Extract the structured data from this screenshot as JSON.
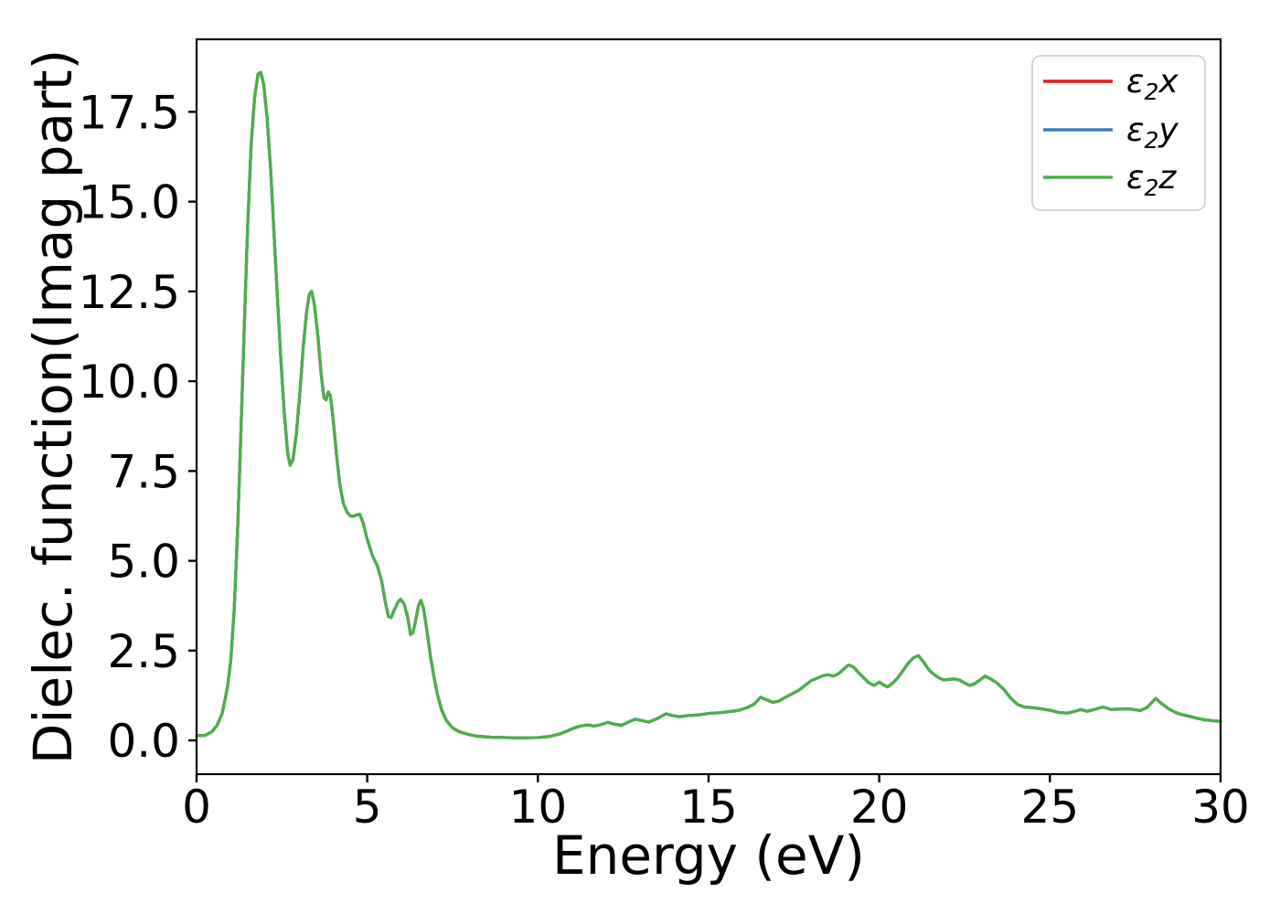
{
  "figure": {
    "background": "#ffffff",
    "axis_color": "#000000",
    "legend_border_color": "#cccccc",
    "legend_background": "#ffffff"
  },
  "chart_data": {
    "type": "line",
    "title": "",
    "xlabel": "Energy (eV)",
    "ylabel": "Dielec. function(Imag part)",
    "xlim": [
      0,
      30
    ],
    "ylim": [
      -0.94,
      19.52
    ],
    "xticks": [
      0,
      5,
      10,
      15,
      20,
      25,
      30
    ],
    "xtick_labels": [
      "0",
      "5",
      "10",
      "15",
      "20",
      "25",
      "30"
    ],
    "yticks": [
      0.0,
      2.5,
      5.0,
      7.5,
      10.0,
      12.5,
      15.0,
      17.5
    ],
    "ytick_labels": [
      "0.0",
      "2.5",
      "5.0",
      "7.5",
      "10.0",
      "12.5",
      "15.0",
      "17.5"
    ],
    "grid": false,
    "legend": {
      "position": "upper right",
      "entries": [
        {
          "symbol": "ε",
          "sub": "2",
          "var": "x",
          "label": "ε2x",
          "color": "#e41a1c"
        },
        {
          "symbol": "ε",
          "sub": "2",
          "var": "y",
          "label": "ε2y",
          "color": "#377eb8"
        },
        {
          "symbol": "ε",
          "sub": "2",
          "var": "z",
          "label": "ε2z",
          "color": "#4daf4a"
        }
      ]
    },
    "series_overlap_identically": true,
    "series": [
      {
        "name": "eps2x",
        "color": "#e41a1c",
        "points_ref": "shared_points"
      },
      {
        "name": "eps2y",
        "color": "#377eb8",
        "points_ref": "shared_points"
      },
      {
        "name": "eps2z",
        "color": "#4daf4a",
        "points_ref": "shared_points"
      }
    ],
    "shared_points": [
      [
        0.0,
        0.13
      ],
      [
        0.25,
        0.14
      ],
      [
        0.45,
        0.24
      ],
      [
        0.6,
        0.42
      ],
      [
        0.75,
        0.75
      ],
      [
        0.9,
        1.45
      ],
      [
        1.0,
        2.2
      ],
      [
        1.1,
        3.6
      ],
      [
        1.2,
        5.8
      ],
      [
        1.3,
        8.6
      ],
      [
        1.4,
        11.6
      ],
      [
        1.5,
        14.4
      ],
      [
        1.6,
        16.6
      ],
      [
        1.7,
        17.9
      ],
      [
        1.8,
        18.55
      ],
      [
        1.88,
        18.6
      ],
      [
        1.97,
        18.25
      ],
      [
        2.07,
        17.3
      ],
      [
        2.17,
        15.9
      ],
      [
        2.27,
        14.1
      ],
      [
        2.37,
        12.3
      ],
      [
        2.47,
        10.6
      ],
      [
        2.57,
        9.1
      ],
      [
        2.67,
        8.0
      ],
      [
        2.74,
        7.66
      ],
      [
        2.82,
        7.8
      ],
      [
        2.92,
        8.5
      ],
      [
        3.02,
        9.6
      ],
      [
        3.12,
        10.9
      ],
      [
        3.22,
        11.9
      ],
      [
        3.3,
        12.42
      ],
      [
        3.37,
        12.5
      ],
      [
        3.45,
        12.15
      ],
      [
        3.55,
        11.3
      ],
      [
        3.65,
        10.2
      ],
      [
        3.73,
        9.55
      ],
      [
        3.79,
        9.48
      ],
      [
        3.86,
        9.7
      ],
      [
        3.92,
        9.6
      ],
      [
        4.0,
        8.95
      ],
      [
        4.1,
        7.95
      ],
      [
        4.2,
        7.1
      ],
      [
        4.3,
        6.6
      ],
      [
        4.4,
        6.37
      ],
      [
        4.5,
        6.25
      ],
      [
        4.6,
        6.24
      ],
      [
        4.7,
        6.28
      ],
      [
        4.78,
        6.3
      ],
      [
        4.88,
        6.05
      ],
      [
        5.0,
        5.6
      ],
      [
        5.15,
        5.15
      ],
      [
        5.3,
        4.85
      ],
      [
        5.42,
        4.45
      ],
      [
        5.52,
        3.9
      ],
      [
        5.62,
        3.45
      ],
      [
        5.7,
        3.42
      ],
      [
        5.8,
        3.65
      ],
      [
        5.9,
        3.85
      ],
      [
        5.98,
        3.93
      ],
      [
        6.08,
        3.8
      ],
      [
        6.18,
        3.45
      ],
      [
        6.27,
        2.95
      ],
      [
        6.34,
        3.0
      ],
      [
        6.42,
        3.35
      ],
      [
        6.5,
        3.75
      ],
      [
        6.57,
        3.9
      ],
      [
        6.65,
        3.68
      ],
      [
        6.75,
        3.05
      ],
      [
        6.85,
        2.35
      ],
      [
        6.95,
        1.8
      ],
      [
        7.05,
        1.3
      ],
      [
        7.18,
        0.85
      ],
      [
        7.32,
        0.55
      ],
      [
        7.5,
        0.35
      ],
      [
        7.7,
        0.24
      ],
      [
        7.95,
        0.17
      ],
      [
        8.2,
        0.12
      ],
      [
        8.6,
        0.09
      ],
      [
        9.0,
        0.08
      ],
      [
        9.5,
        0.07
      ],
      [
        10.0,
        0.08
      ],
      [
        10.35,
        0.11
      ],
      [
        10.65,
        0.18
      ],
      [
        10.85,
        0.26
      ],
      [
        11.05,
        0.34
      ],
      [
        11.25,
        0.4
      ],
      [
        11.45,
        0.43
      ],
      [
        11.65,
        0.4
      ],
      [
        11.85,
        0.44
      ],
      [
        12.05,
        0.5
      ],
      [
        12.25,
        0.45
      ],
      [
        12.45,
        0.42
      ],
      [
        12.65,
        0.51
      ],
      [
        12.85,
        0.59
      ],
      [
        13.05,
        0.55
      ],
      [
        13.25,
        0.51
      ],
      [
        13.5,
        0.61
      ],
      [
        13.75,
        0.74
      ],
      [
        13.95,
        0.69
      ],
      [
        14.15,
        0.66
      ],
      [
        14.4,
        0.69
      ],
      [
        14.7,
        0.71
      ],
      [
        15.0,
        0.75
      ],
      [
        15.3,
        0.77
      ],
      [
        15.6,
        0.8
      ],
      [
        15.9,
        0.84
      ],
      [
        16.15,
        0.92
      ],
      [
        16.35,
        1.02
      ],
      [
        16.52,
        1.2
      ],
      [
        16.7,
        1.13
      ],
      [
        16.88,
        1.06
      ],
      [
        17.05,
        1.09
      ],
      [
        17.25,
        1.2
      ],
      [
        17.45,
        1.3
      ],
      [
        17.65,
        1.4
      ],
      [
        17.85,
        1.55
      ],
      [
        18.0,
        1.66
      ],
      [
        18.2,
        1.74
      ],
      [
        18.35,
        1.8
      ],
      [
        18.5,
        1.83
      ],
      [
        18.65,
        1.79
      ],
      [
        18.8,
        1.85
      ],
      [
        18.95,
        1.98
      ],
      [
        19.1,
        2.1
      ],
      [
        19.25,
        2.04
      ],
      [
        19.4,
        1.88
      ],
      [
        19.55,
        1.74
      ],
      [
        19.7,
        1.6
      ],
      [
        19.85,
        1.53
      ],
      [
        20.0,
        1.62
      ],
      [
        20.12,
        1.55
      ],
      [
        20.25,
        1.49
      ],
      [
        20.4,
        1.6
      ],
      [
        20.55,
        1.75
      ],
      [
        20.7,
        1.95
      ],
      [
        20.85,
        2.15
      ],
      [
        21.0,
        2.3
      ],
      [
        21.15,
        2.36
      ],
      [
        21.3,
        2.18
      ],
      [
        21.45,
        1.97
      ],
      [
        21.6,
        1.84
      ],
      [
        21.75,
        1.74
      ],
      [
        21.9,
        1.68
      ],
      [
        22.05,
        1.7
      ],
      [
        22.2,
        1.71
      ],
      [
        22.35,
        1.68
      ],
      [
        22.5,
        1.6
      ],
      [
        22.65,
        1.53
      ],
      [
        22.8,
        1.58
      ],
      [
        22.95,
        1.68
      ],
      [
        23.1,
        1.79
      ],
      [
        23.25,
        1.72
      ],
      [
        23.45,
        1.6
      ],
      [
        23.65,
        1.42
      ],
      [
        23.85,
        1.18
      ],
      [
        24.05,
        1.0
      ],
      [
        24.25,
        0.93
      ],
      [
        24.5,
        0.91
      ],
      [
        24.75,
        0.88
      ],
      [
        25.0,
        0.84
      ],
      [
        25.25,
        0.78
      ],
      [
        25.5,
        0.76
      ],
      [
        25.7,
        0.8
      ],
      [
        25.9,
        0.86
      ],
      [
        26.1,
        0.81
      ],
      [
        26.3,
        0.86
      ],
      [
        26.55,
        0.93
      ],
      [
        26.8,
        0.86
      ],
      [
        27.0,
        0.87
      ],
      [
        27.25,
        0.88
      ],
      [
        27.45,
        0.86
      ],
      [
        27.65,
        0.83
      ],
      [
        27.85,
        0.92
      ],
      [
        28.0,
        1.07
      ],
      [
        28.1,
        1.17
      ],
      [
        28.25,
        1.04
      ],
      [
        28.45,
        0.9
      ],
      [
        28.65,
        0.79
      ],
      [
        28.85,
        0.72
      ],
      [
        29.05,
        0.68
      ],
      [
        29.25,
        0.63
      ],
      [
        29.5,
        0.58
      ],
      [
        29.75,
        0.55
      ],
      [
        30.0,
        0.53
      ]
    ]
  }
}
